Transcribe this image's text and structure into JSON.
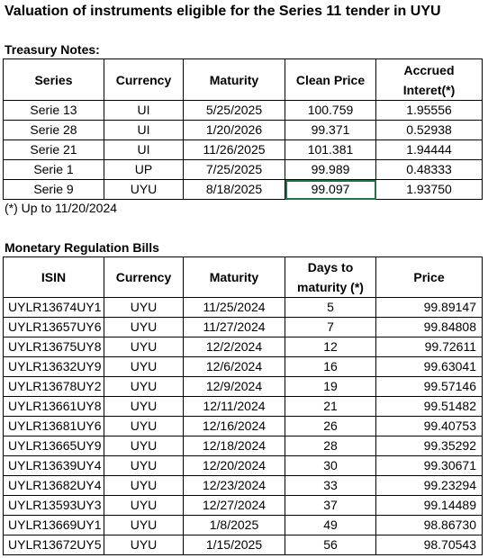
{
  "title": "Valuation of instruments eligible for the Series 11 tender in UYU",
  "treasury": {
    "heading": "Treasury Notes:",
    "headers": {
      "series": "Series",
      "currency": "Currency",
      "maturity": "Maturity",
      "clean_price": "Clean Price",
      "accrued_line1": "Accrued",
      "accrued_line2": "Interet(*)"
    },
    "rows": [
      {
        "series": "Serie 13",
        "currency": "UI",
        "maturity": "5/25/2025",
        "clean_price": "100.759",
        "accrued": "1.95556"
      },
      {
        "series": "Serie 28",
        "currency": "UI",
        "maturity": "1/20/2026",
        "clean_price": "99.371",
        "accrued": "0.52938"
      },
      {
        "series": "Serie 21",
        "currency": "UI",
        "maturity": "11/26/2025",
        "clean_price": "101.381",
        "accrued": "1.94444"
      },
      {
        "series": "Serie 1",
        "currency": "UP",
        "maturity": "7/25/2025",
        "clean_price": "99.989",
        "accrued": "0.48333"
      },
      {
        "series": "Serie 9",
        "currency": "UYU",
        "maturity": "8/18/2025",
        "clean_price": "99.097",
        "accrued": "1.93750"
      }
    ],
    "footnote": "(*) Up to 11/20/2024"
  },
  "bills": {
    "heading": "Monetary Regulation Bills",
    "headers": {
      "isin": "ISIN",
      "currency": "Currency",
      "maturity": "Maturity",
      "days_line1": "Days to",
      "days_line2": "maturity (*)",
      "price": "Price"
    },
    "rows": [
      {
        "isin": "UYLR13674UY1",
        "currency": "UYU",
        "maturity": "11/25/2024",
        "days": "5",
        "price": "99.89147"
      },
      {
        "isin": "UYLR13657UY6",
        "currency": "UYU",
        "maturity": "11/27/2024",
        "days": "7",
        "price": "99.84808"
      },
      {
        "isin": "UYLR13675UY8",
        "currency": "UYU",
        "maturity": "12/2/2024",
        "days": "12",
        "price": "99.72611"
      },
      {
        "isin": "UYLR13632UY9",
        "currency": "UYU",
        "maturity": "12/6/2024",
        "days": "16",
        "price": "99.63041"
      },
      {
        "isin": "UYLR13678UY2",
        "currency": "UYU",
        "maturity": "12/9/2024",
        "days": "19",
        "price": "99.57146"
      },
      {
        "isin": "UYLR13661UY8",
        "currency": "UYU",
        "maturity": "12/11/2024",
        "days": "21",
        "price": "99.51482"
      },
      {
        "isin": "UYLR13681UY6",
        "currency": "UYU",
        "maturity": "12/16/2024",
        "days": "26",
        "price": "99.40753"
      },
      {
        "isin": "UYLR13665UY9",
        "currency": "UYU",
        "maturity": "12/18/2024",
        "days": "28",
        "price": "99.35292"
      },
      {
        "isin": "UYLR13639UY4",
        "currency": "UYU",
        "maturity": "12/20/2024",
        "days": "30",
        "price": "99.30671"
      },
      {
        "isin": "UYLR13682UY4",
        "currency": "UYU",
        "maturity": "12/23/2024",
        "days": "33",
        "price": "99.23294"
      },
      {
        "isin": "UYLR13593UY3",
        "currency": "UYU",
        "maturity": "12/27/2024",
        "days": "37",
        "price": "99.14489"
      },
      {
        "isin": "UYLR13669UY1",
        "currency": "UYU",
        "maturity": "1/8/2025",
        "days": "49",
        "price": "98.86730"
      },
      {
        "isin": "UYLR13672UY5",
        "currency": "UYU",
        "maturity": "1/15/2025",
        "days": "56",
        "price": "98.70543"
      }
    ]
  }
}
